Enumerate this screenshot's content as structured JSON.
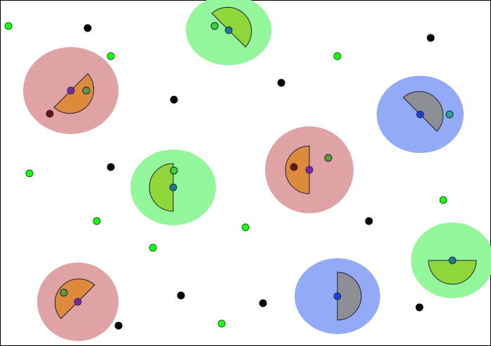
{
  "colors": {
    "background": "#ffffff",
    "border": "#000000",
    "outline": "#1f1f3a",
    "food": "#19ff19",
    "food_stroke": "#0a6a0a",
    "poison": "#000000"
  },
  "species": {
    "red": {
      "aura": "#e0a3a5",
      "body": "#dd8a3c",
      "eye": "#7a2aa0",
      "pellet": "#5c9f3a"
    },
    "green": {
      "aura": "#93f69a",
      "body": "#8fd63a",
      "eye": "#1e7a8c",
      "pellet": "#37d43a"
    },
    "blue": {
      "aura": "#93aaf6",
      "body": "#8e8f95",
      "eye": "#1f3fd6",
      "pellet": "#2aa48c"
    }
  },
  "agents": [
    {
      "name": "agent-red-1",
      "species": "red",
      "heading_deg": 225
    },
    {
      "name": "agent-green-1",
      "species": "green",
      "heading_deg": 315
    },
    {
      "name": "agent-red-2",
      "species": "red",
      "heading_deg": 90
    },
    {
      "name": "agent-green-2",
      "species": "green",
      "heading_deg": 90
    },
    {
      "name": "agent-red-3",
      "species": "red",
      "heading_deg": 45
    },
    {
      "name": "agent-blue-1",
      "species": "blue",
      "heading_deg": 315
    },
    {
      "name": "agent-blue-2",
      "species": "blue",
      "heading_deg": 270
    },
    {
      "name": "agent-green-3",
      "species": "green",
      "heading_deg": 180
    }
  ]
}
